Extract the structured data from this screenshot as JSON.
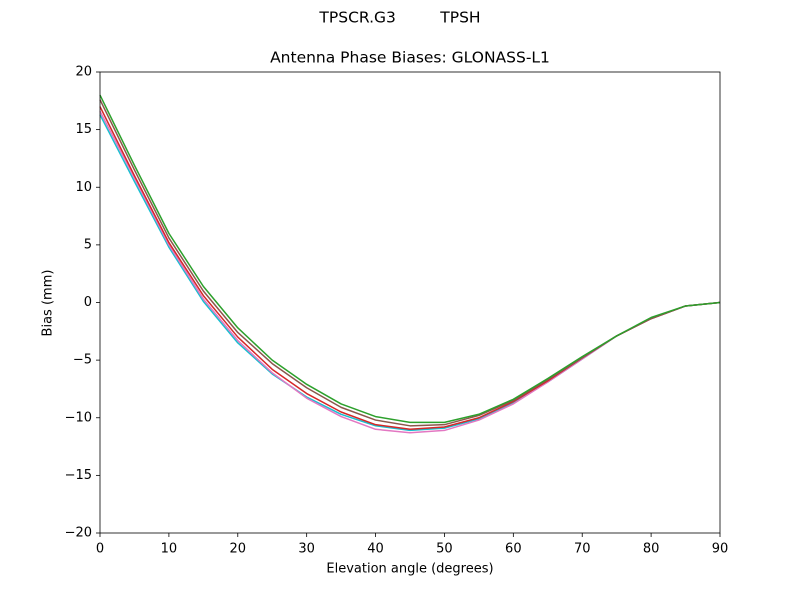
{
  "chart_data": {
    "type": "line",
    "suptitle": "TPSCR.G3         TPSH",
    "title": "Antenna Phase Biases: GLONASS-L1",
    "x_label": "Elevation angle (degrees)",
    "y_label": "Bias (mm)",
    "x": [
      0,
      5,
      10,
      15,
      20,
      25,
      30,
      35,
      40,
      45,
      50,
      55,
      60,
      65,
      70,
      75,
      80,
      85,
      90
    ],
    "series": [
      {
        "color": "#17becf",
        "values": [
          16.3,
          10.5,
          4.8,
          0.1,
          -3.5,
          -6.2,
          -8.2,
          -9.7,
          -10.7,
          -11.1,
          -10.9,
          -10.1,
          -8.7,
          -6.9,
          -4.9,
          -2.9,
          -1.4,
          -0.3,
          0
        ]
      },
      {
        "color": "#e377c2",
        "values": [
          16.6,
          10.8,
          5.0,
          0.3,
          -3.3,
          -6.1,
          -8.3,
          -9.9,
          -11.0,
          -11.3,
          -11.1,
          -10.2,
          -8.8,
          -6.9,
          -4.9,
          -2.9,
          -1.4,
          -0.3,
          0
        ]
      },
      {
        "color": "#d62728",
        "values": [
          17.0,
          11.0,
          5.2,
          0.6,
          -3.0,
          -5.8,
          -7.9,
          -9.5,
          -10.6,
          -11.0,
          -10.8,
          -10.0,
          -8.6,
          -6.8,
          -4.8,
          -2.9,
          -1.4,
          -0.3,
          0
        ]
      },
      {
        "color": "#8c564b",
        "values": [
          17.6,
          11.5,
          5.6,
          1.0,
          -2.6,
          -5.3,
          -7.4,
          -9.1,
          -10.2,
          -10.7,
          -10.6,
          -9.8,
          -8.5,
          -6.7,
          -4.8,
          -2.9,
          -1.4,
          -0.3,
          0
        ]
      },
      {
        "color": "#2ca02c",
        "values": [
          18.0,
          11.9,
          6.0,
          1.4,
          -2.2,
          -5.0,
          -7.1,
          -8.8,
          -9.9,
          -10.4,
          -10.4,
          -9.7,
          -8.4,
          -6.6,
          -4.7,
          -2.9,
          -1.3,
          -0.3,
          0
        ]
      }
    ],
    "xlim": [
      0,
      90
    ],
    "xticks": [
      0,
      10,
      20,
      30,
      40,
      50,
      60,
      70,
      80,
      90
    ],
    "ylim": [
      -20,
      20
    ],
    "yticks": [
      {
        "value": -20,
        "label": "−20"
      },
      {
        "value": -15,
        "label": "−15"
      },
      {
        "value": -10,
        "label": "−10"
      },
      {
        "value": -5,
        "label": "−5"
      },
      0,
      5,
      10,
      15,
      20
    ],
    "grid": false
  }
}
